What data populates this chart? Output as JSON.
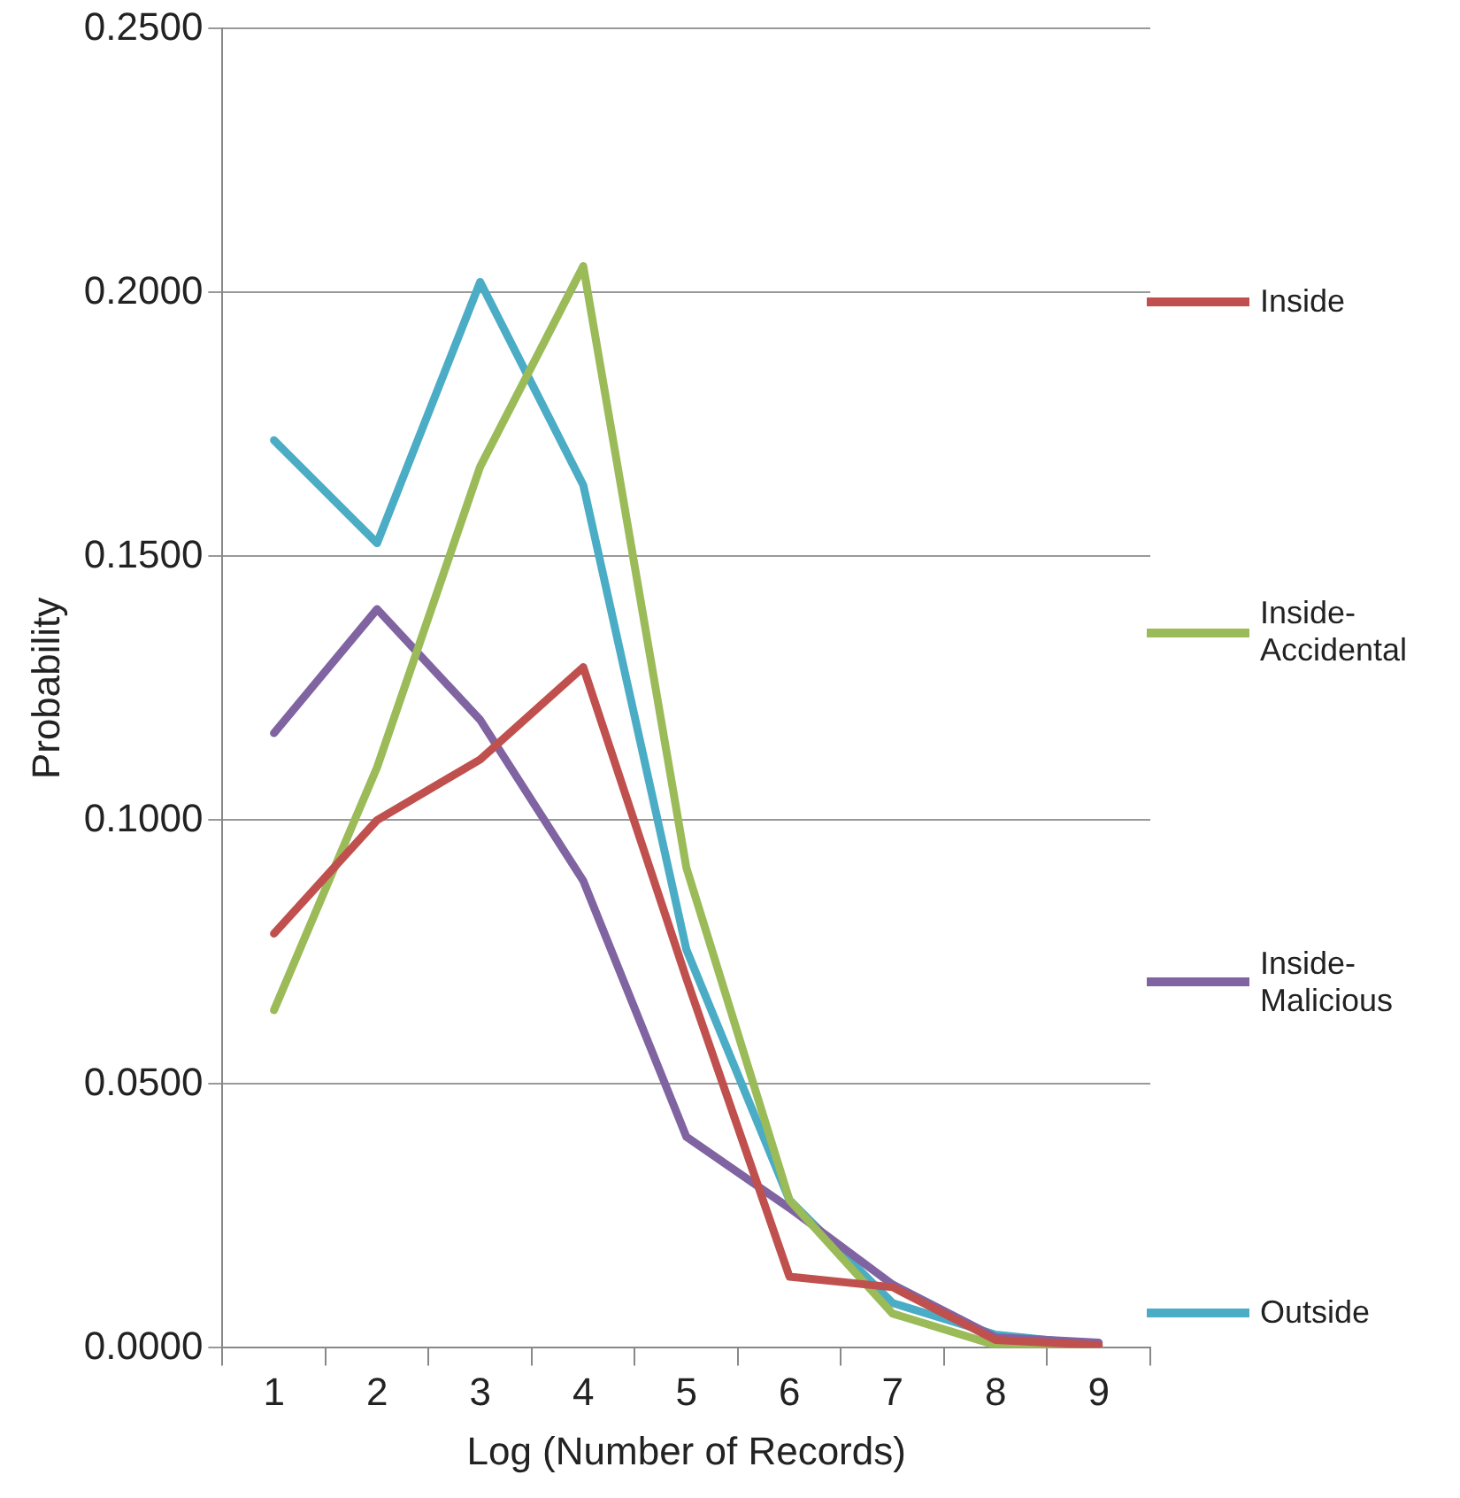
{
  "chart_data": {
    "type": "line",
    "xlabel": "Log (Number of Records)",
    "ylabel": "Probability",
    "categories": [
      "1",
      "2",
      "3",
      "4",
      "5",
      "6",
      "7",
      "8",
      "9"
    ],
    "series": [
      {
        "name": "Inside",
        "color": "#c0504d",
        "values": [
          0.0785,
          0.1,
          0.1115,
          0.129,
          0.07,
          0.0135,
          0.0115,
          0.0015,
          0.0005
        ]
      },
      {
        "name": "Inside-Accidental",
        "color": "#9bbb59",
        "values": [
          0.064,
          0.11,
          0.167,
          0.205,
          0.091,
          0.028,
          0.0065,
          0.0005,
          0
        ]
      },
      {
        "name": "Inside-Malicious",
        "color": "#8064a2",
        "values": [
          0.1165,
          0.14,
          0.119,
          0.0885,
          0.04,
          0.0265,
          0.012,
          0.002,
          0.001
        ]
      },
      {
        "name": "Outside",
        "color": "#4bacc6",
        "values": [
          0.172,
          0.1525,
          0.202,
          0.1635,
          0.0755,
          0.028,
          0.0085,
          0.0025,
          0.0005
        ]
      }
    ],
    "ylim": [
      0,
      0.25
    ],
    "yticks": [
      {
        "value": 0,
        "label": "0.0000"
      },
      {
        "value": 0.05,
        "label": "0.0500"
      },
      {
        "value": 0.1,
        "label": "0.1000"
      },
      {
        "value": 0.15,
        "label": "0.1500"
      },
      {
        "value": 0.2,
        "label": "0.2000"
      },
      {
        "value": 0.25,
        "label": "0.2500"
      }
    ],
    "grid": "y",
    "legend": "right",
    "marker": "none",
    "line_style": "solid"
  }
}
